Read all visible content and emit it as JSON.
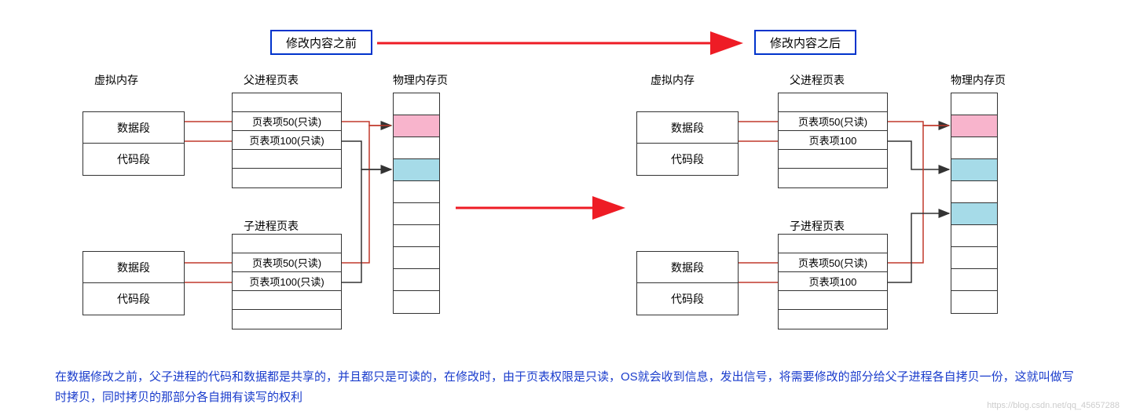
{
  "titles": {
    "before": "修改内容之前",
    "after": "修改内容之后"
  },
  "labels": {
    "virtualMem": "虚拟内存",
    "parentTable": "父进程页表",
    "childTable": "子进程页表",
    "physPage": "物理内存页",
    "dataSeg": "数据段",
    "codeSeg": "代码段"
  },
  "left": {
    "parent": {
      "rows": [
        "",
        "页表项50(只读)",
        "页表项100(只读)",
        "",
        ""
      ]
    },
    "child": {
      "rows": [
        "",
        "页表项50(只读)",
        "页表项100(只读)",
        "",
        ""
      ]
    }
  },
  "right": {
    "parent": {
      "rows": [
        "",
        "页表项50(只读)",
        "页表项100",
        "",
        ""
      ]
    },
    "child": {
      "rows": [
        "",
        "页表项50(只读)",
        "页表项100",
        "",
        ""
      ]
    }
  },
  "memColors": {
    "pink": "#f8b4cc",
    "cyan": "#a6dbe8",
    "blank": "#ffffff"
  },
  "leftMem": [
    "blank",
    "pink",
    "blank",
    "cyan",
    "blank",
    "blank",
    "blank",
    "blank",
    "blank",
    "blank"
  ],
  "rightMem": [
    "blank",
    "pink",
    "blank",
    "cyan",
    "blank",
    "cyan",
    "blank",
    "blank",
    "blank",
    "blank"
  ],
  "caption": "在数据修改之前，父子进程的代码和数据都是共享的，并且都只是可读的，在修改时，由于页表权限是只读，OS就会收到信息，发出信号，将需要修改的部分给父子进程各自拷贝一份，这就叫做写时拷贝，同时拷贝的那部分各自拥有读写的权利",
  "watermark": "https://blog.csdn.net/qq_45657288",
  "arrowColor": "#ee1c25",
  "blueBorder": "#0033cc",
  "connColor": "#c0392b"
}
